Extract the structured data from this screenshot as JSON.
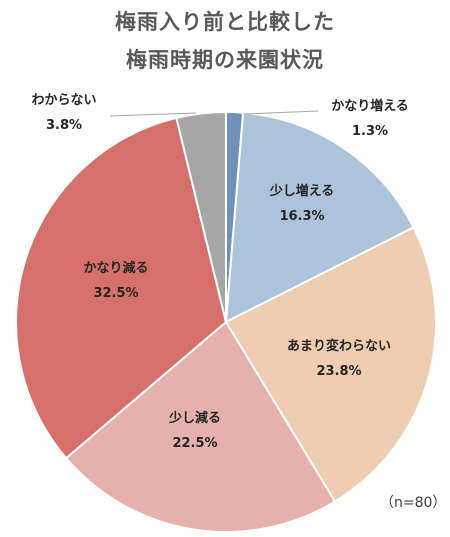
{
  "chart_data": {
    "type": "pie",
    "title": [
      "梅雨入り前と比較した",
      "梅雨時期の来園状況"
    ],
    "note": "（n=80）",
    "slices": [
      {
        "label": "かなり増える",
        "value": 1.3,
        "value_label": "1.3%",
        "color": "#6f90b8"
      },
      {
        "label": "少し増える",
        "value": 16.3,
        "value_label": "16.3%",
        "color": "#adc3da"
      },
      {
        "label": "あまり変わらない",
        "value": 23.8,
        "value_label": "23.8%",
        "color": "#efcdb0"
      },
      {
        "label": "少し減る",
        "value": 22.5,
        "value_label": "22.5%",
        "color": "#e6b0ad"
      },
      {
        "label": "かなり減る",
        "value": 32.5,
        "value_label": "32.5%",
        "color": "#d6706b"
      },
      {
        "label": "わからない",
        "value": 3.8,
        "value_label": "3.8%",
        "color": "#a6a6a6"
      }
    ]
  }
}
